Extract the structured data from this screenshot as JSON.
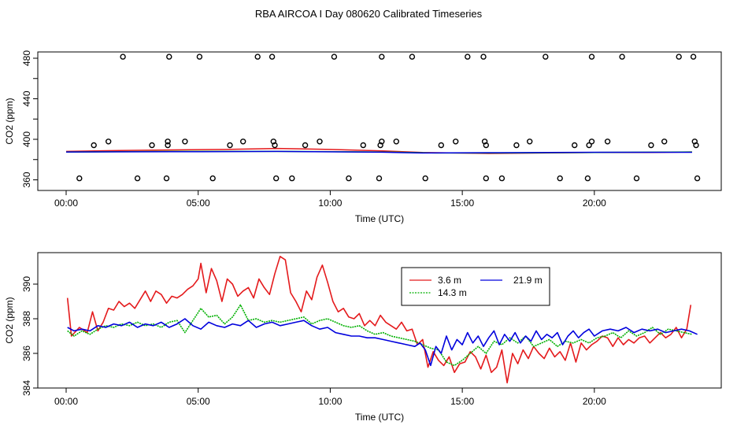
{
  "chart_data": [
    {
      "type": "scatter+line",
      "title": "RBA AIRCOA I  Day 080620  Calibrated Timeseries",
      "xlabel": "Time (UTC)",
      "ylabel": "CO2 (ppm)",
      "xlim": [
        -1,
        24
      ],
      "ylim": [
        355,
        485
      ],
      "xticks": [
        0,
        5,
        10,
        15,
        20
      ],
      "xtick_labels": [
        "00:00",
        "05:00",
        "10:00",
        "15:00",
        "20:00"
      ],
      "yticks": [
        360,
        380,
        400,
        420,
        440,
        460,
        480
      ],
      "ytick_labels": [
        "360",
        "",
        "400",
        "",
        "440",
        "",
        "480"
      ],
      "cal_high": {
        "y": 481.5,
        "x": [
          2.15,
          3.9,
          5.05,
          7.25,
          7.8,
          10.15,
          11.95,
          13.1,
          15.2,
          15.8,
          18.15,
          19.9,
          21.05,
          23.2,
          23.75
        ]
      },
      "cal_mid": {
        "y": 397.8,
        "x": [
          1.6,
          3.85,
          4.5,
          6.7,
          7.85,
          9.6,
          11.95,
          12.5,
          14.75,
          15.85,
          17.55,
          19.9,
          20.5,
          22.65,
          23.8
        ]
      },
      "cal_low": {
        "y": 394.2,
        "x": [
          1.05,
          3.25,
          3.85,
          6.2,
          7.9,
          9.05,
          11.25,
          11.9,
          14.2,
          15.9,
          17.05,
          19.25,
          19.8,
          22.15,
          23.85
        ]
      },
      "cal_target": {
        "y": 361.5,
        "x": [
          0.5,
          2.7,
          3.8,
          5.55,
          7.95,
          8.55,
          10.7,
          11.85,
          13.6,
          15.9,
          16.5,
          18.7,
          19.75,
          21.6,
          23.9
        ]
      },
      "series": [
        {
          "name": "3.6 m",
          "color": "#e41a1c",
          "x": [
            0,
            2,
            4,
            6,
            8,
            10,
            12,
            13.5,
            16,
            18,
            20,
            22,
            23.7
          ],
          "values": [
            388,
            389,
            389.5,
            390,
            391,
            390,
            388.5,
            387,
            386,
            386.5,
            387,
            387,
            387.5
          ]
        },
        {
          "name": "14.3 m",
          "color": "#00b000",
          "x": [
            0,
            4,
            8,
            12,
            14,
            16,
            20,
            23.7
          ],
          "values": [
            387.5,
            388,
            388,
            387.5,
            386.5,
            386.5,
            387,
            387.5
          ]
        },
        {
          "name": "21.9 m",
          "color": "#0000dd",
          "x": [
            0,
            4,
            8,
            12,
            13.5,
            16,
            20,
            23.7
          ],
          "values": [
            387.5,
            387.7,
            388,
            387.3,
            386.5,
            386.8,
            387.2,
            387.2
          ]
        }
      ]
    },
    {
      "type": "line",
      "xlabel": "Time (UTC)",
      "ylabel": "CO2 (ppm)",
      "xlim": [
        -1,
        24
      ],
      "ylim": [
        384,
        391.6
      ],
      "xticks": [
        0,
        5,
        10,
        15,
        20
      ],
      "xtick_labels": [
        "00:00",
        "05:00",
        "10:00",
        "15:00",
        "20:00"
      ],
      "yticks": [
        384,
        386,
        388,
        390
      ],
      "ytick_labels": [
        "384",
        "386",
        "388",
        "390"
      ],
      "legend": {
        "position": "top-center",
        "entries": [
          "3.6 m",
          "21.9 m",
          "14.3 m"
        ]
      },
      "series": [
        {
          "name": "3.6 m",
          "color": "#e41a1c",
          "x": [
            0.05,
            0.2,
            0.5,
            0.8,
            1.0,
            1.2,
            1.4,
            1.6,
            1.8,
            2.0,
            2.2,
            2.4,
            2.6,
            2.8,
            3.0,
            3.2,
            3.4,
            3.6,
            3.8,
            4.0,
            4.2,
            4.4,
            4.6,
            4.8,
            5.0,
            5.1,
            5.3,
            5.5,
            5.7,
            5.9,
            6.1,
            6.3,
            6.5,
            6.7,
            6.9,
            7.1,
            7.3,
            7.5,
            7.7,
            7.9,
            8.1,
            8.3,
            8.5,
            8.7,
            8.9,
            9.1,
            9.3,
            9.5,
            9.7,
            9.9,
            10.1,
            10.3,
            10.5,
            10.7,
            10.9,
            11.1,
            11.3,
            11.5,
            11.7,
            11.9,
            12.1,
            12.3,
            12.5,
            12.7,
            12.9,
            13.1,
            13.3,
            13.5,
            13.7,
            13.9,
            14.1,
            14.3,
            14.5,
            14.7,
            14.9,
            15.1,
            15.3,
            15.5,
            15.7,
            15.9,
            16.1,
            16.3,
            16.5,
            16.7,
            16.9,
            17.1,
            17.3,
            17.5,
            17.7,
            17.9,
            18.1,
            18.3,
            18.5,
            18.7,
            18.9,
            19.1,
            19.3,
            19.5,
            19.7,
            19.9,
            20.1,
            20.3,
            20.5,
            20.7,
            20.9,
            21.1,
            21.3,
            21.5,
            21.7,
            21.9,
            22.1,
            22.3,
            22.5,
            22.7,
            22.9,
            23.1,
            23.3,
            23.5,
            23.65
          ],
          "values": [
            389.2,
            387.0,
            387.5,
            387.2,
            388.4,
            387.3,
            387.8,
            388.6,
            388.5,
            389.0,
            388.7,
            388.9,
            388.6,
            389.1,
            389.6,
            389.0,
            389.6,
            389.4,
            388.9,
            389.3,
            389.2,
            389.4,
            389.7,
            389.9,
            390.3,
            391.2,
            389.5,
            390.9,
            390.2,
            389.0,
            390.3,
            390.0,
            389.3,
            389.6,
            389.8,
            389.2,
            390.3,
            389.8,
            389.4,
            390.6,
            391.6,
            391.4,
            389.5,
            389.0,
            388.4,
            389.6,
            389.1,
            390.4,
            391.1,
            390.1,
            389.0,
            388.4,
            388.6,
            388.1,
            388.0,
            388.3,
            387.6,
            387.9,
            387.6,
            388.2,
            387.8,
            387.6,
            387.4,
            387.8,
            387.3,
            387.4,
            386.5,
            386.8,
            385.2,
            386.1,
            385.6,
            385.3,
            385.8,
            384.9,
            385.4,
            385.5,
            386.1,
            385.8,
            385.1,
            385.9,
            384.9,
            385.2,
            386.2,
            384.3,
            386.0,
            385.4,
            386.2,
            385.7,
            386.4,
            386.0,
            385.7,
            386.3,
            385.8,
            386.1,
            385.6,
            386.6,
            385.5,
            386.6,
            386.2,
            386.5,
            386.7,
            387.0,
            386.9,
            386.4,
            386.9,
            386.5,
            386.8,
            386.6,
            386.9,
            387.0,
            386.6,
            386.9,
            387.2,
            386.9,
            387.1,
            387.5,
            386.9,
            387.4,
            388.8
          ]
        },
        {
          "name": "14.3 m",
          "color": "#00b000",
          "x": [
            0.05,
            0.3,
            0.6,
            0.9,
            1.2,
            1.5,
            1.8,
            2.1,
            2.4,
            2.7,
            3.0,
            3.3,
            3.6,
            3.9,
            4.2,
            4.5,
            4.8,
            5.1,
            5.4,
            5.7,
            6.0,
            6.3,
            6.6,
            6.9,
            7.2,
            7.5,
            7.8,
            8.1,
            8.4,
            8.7,
            9.0,
            9.3,
            9.6,
            9.9,
            10.2,
            10.5,
            10.8,
            11.1,
            11.4,
            11.7,
            12.0,
            12.3,
            12.6,
            12.9,
            13.2,
            13.5,
            13.8,
            14.1,
            14.4,
            14.7,
            15.0,
            15.3,
            15.6,
            15.9,
            16.2,
            16.5,
            16.8,
            17.1,
            17.4,
            17.7,
            18.0,
            18.3,
            18.6,
            18.9,
            19.2,
            19.5,
            19.8,
            20.1,
            20.4,
            20.7,
            21.0,
            21.3,
            21.6,
            21.9,
            22.2,
            22.5,
            22.8,
            23.1,
            23.4,
            23.7
          ],
          "values": [
            387.3,
            387.0,
            387.3,
            387.1,
            387.4,
            387.6,
            387.5,
            387.7,
            387.6,
            387.8,
            387.6,
            387.7,
            387.5,
            387.8,
            387.9,
            387.2,
            387.9,
            388.6,
            388.1,
            388.2,
            387.7,
            388.1,
            388.8,
            387.9,
            388.0,
            387.8,
            387.9,
            387.8,
            387.9,
            388.0,
            388.1,
            387.7,
            387.9,
            388.0,
            387.8,
            387.6,
            387.5,
            387.6,
            387.3,
            387.1,
            387.2,
            387.0,
            386.9,
            386.8,
            386.7,
            386.5,
            386.3,
            386.2,
            385.5,
            385.3,
            385.6,
            386.0,
            386.4,
            386.0,
            386.7,
            386.5,
            386.9,
            386.6,
            387.0,
            386.4,
            386.6,
            386.8,
            386.4,
            386.7,
            386.6,
            386.8,
            386.6,
            386.9,
            387.0,
            387.2,
            386.9,
            387.3,
            387.0,
            387.2,
            387.5,
            387.1,
            387.4,
            387.3,
            387.2,
            387.1
          ]
        },
        {
          "name": "21.9 m",
          "color": "#0000dd",
          "x": [
            0.05,
            0.3,
            0.6,
            0.9,
            1.2,
            1.5,
            1.8,
            2.1,
            2.4,
            2.7,
            3.0,
            3.3,
            3.6,
            3.9,
            4.2,
            4.5,
            4.8,
            5.1,
            5.4,
            5.7,
            6.0,
            6.3,
            6.6,
            6.9,
            7.2,
            7.5,
            7.8,
            8.1,
            8.4,
            8.7,
            9.0,
            9.3,
            9.6,
            9.9,
            10.2,
            10.5,
            10.8,
            11.1,
            11.4,
            11.7,
            12.0,
            12.3,
            12.6,
            12.9,
            13.2,
            13.4,
            13.6,
            13.8,
            14.0,
            14.2,
            14.4,
            14.6,
            14.8,
            15.0,
            15.2,
            15.4,
            15.6,
            15.8,
            16.0,
            16.2,
            16.4,
            16.6,
            16.8,
            17.0,
            17.2,
            17.4,
            17.6,
            17.8,
            18.0,
            18.2,
            18.4,
            18.6,
            18.8,
            19.0,
            19.2,
            19.4,
            19.6,
            19.8,
            20.0,
            20.3,
            20.6,
            20.9,
            21.2,
            21.5,
            21.8,
            22.1,
            22.4,
            22.7,
            23.0,
            23.3,
            23.6,
            23.9
          ],
          "values": [
            387.5,
            387.3,
            387.4,
            387.3,
            387.6,
            387.5,
            387.7,
            387.6,
            387.8,
            387.5,
            387.7,
            387.6,
            387.8,
            387.5,
            387.7,
            388.0,
            387.6,
            387.4,
            387.8,
            387.6,
            387.5,
            387.7,
            387.6,
            387.9,
            387.5,
            387.7,
            387.8,
            387.6,
            387.7,
            387.8,
            387.9,
            387.6,
            387.4,
            387.5,
            387.2,
            387.1,
            387.0,
            387.0,
            386.9,
            386.9,
            386.8,
            386.7,
            386.6,
            386.5,
            386.4,
            386.6,
            386.2,
            385.3,
            386.4,
            386.0,
            387.0,
            386.2,
            386.8,
            386.5,
            387.2,
            386.6,
            387.0,
            386.4,
            386.9,
            387.3,
            386.5,
            387.1,
            386.7,
            387.2,
            386.6,
            387.0,
            386.7,
            387.3,
            386.8,
            387.1,
            386.9,
            387.2,
            386.5,
            387.0,
            387.3,
            386.9,
            387.2,
            387.4,
            387.0,
            387.3,
            387.4,
            387.3,
            387.5,
            387.2,
            387.4,
            387.3,
            387.4,
            387.2,
            387.3,
            387.4,
            387.3,
            387.1
          ]
        }
      ]
    }
  ]
}
